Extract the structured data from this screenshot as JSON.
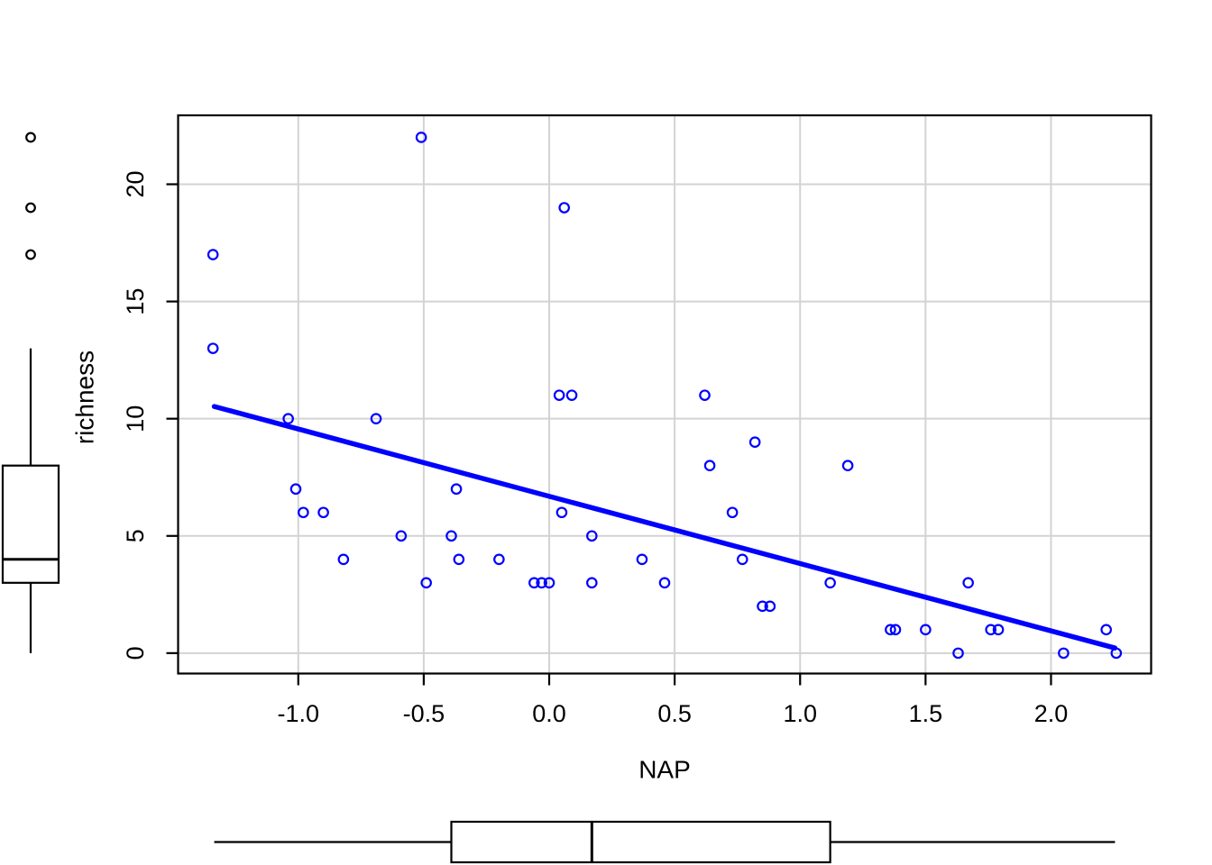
{
  "chart_data": {
    "type": "scatter",
    "title": "",
    "xlabel": "NAP",
    "ylabel": "richness",
    "x_ticks": [
      "-1.0",
      "-0.5",
      "0.0",
      "0.5",
      "1.0",
      "1.5",
      "2.0"
    ],
    "x_tick_values": [
      -1.0,
      -0.5,
      0.0,
      0.5,
      1.0,
      1.5,
      2.0
    ],
    "y_ticks": [
      "0",
      "5",
      "10",
      "15",
      "20"
    ],
    "y_tick_values": [
      0,
      5,
      10,
      15,
      20
    ],
    "xlim": [
      -1.479,
      2.399
    ],
    "ylim": [
      -0.87,
      22.94
    ],
    "grid": true,
    "legend": "none",
    "points": [
      [
        -1.34,
        17
      ],
      [
        -1.34,
        13
      ],
      [
        -1.04,
        10
      ],
      [
        -1.01,
        7
      ],
      [
        -0.98,
        6
      ],
      [
        -0.9,
        6
      ],
      [
        -0.82,
        4
      ],
      [
        -0.69,
        10
      ],
      [
        -0.59,
        5
      ],
      [
        -0.51,
        22
      ],
      [
        -0.49,
        3
      ],
      [
        -0.39,
        5
      ],
      [
        -0.37,
        7
      ],
      [
        -0.36,
        4
      ],
      [
        -0.2,
        4
      ],
      [
        -0.06,
        3
      ],
      [
        -0.03,
        3
      ],
      [
        0.0,
        3
      ],
      [
        0.04,
        11
      ],
      [
        0.05,
        6
      ],
      [
        0.06,
        19
      ],
      [
        0.09,
        11
      ],
      [
        0.17,
        5
      ],
      [
        0.17,
        3
      ],
      [
        0.37,
        4
      ],
      [
        0.46,
        3
      ],
      [
        0.62,
        11
      ],
      [
        0.64,
        8
      ],
      [
        0.73,
        6
      ],
      [
        0.77,
        4
      ],
      [
        0.82,
        9
      ],
      [
        0.85,
        2
      ],
      [
        0.88,
        2
      ],
      [
        1.12,
        3
      ],
      [
        1.19,
        8
      ],
      [
        1.36,
        1
      ],
      [
        1.38,
        1
      ],
      [
        1.5,
        1
      ],
      [
        1.63,
        0
      ],
      [
        1.67,
        3
      ],
      [
        1.76,
        1
      ],
      [
        1.79,
        1
      ],
      [
        2.05,
        0
      ],
      [
        2.22,
        1
      ],
      [
        2.26,
        0
      ]
    ],
    "regression_line": {
      "intercept": 6.69,
      "slope": -2.87,
      "x_from": -1.335,
      "x_to": 2.255
    },
    "nap_boxplot": {
      "orientation": "horizontal",
      "min": -1.335,
      "q1": -0.39,
      "median": 0.17,
      "q3": 1.12,
      "max": 2.255,
      "outliers": []
    },
    "richness_boxplot": {
      "orientation": "vertical",
      "min": 0,
      "q1": 3,
      "median": 4,
      "q3": 8,
      "max": 13,
      "outliers": [
        17,
        19,
        22
      ]
    },
    "colors": {
      "points": "#0000ff",
      "regression": "#0000ff",
      "grid": "#d3d3d3",
      "axis": "#000000",
      "background": "#ffffff"
    }
  }
}
